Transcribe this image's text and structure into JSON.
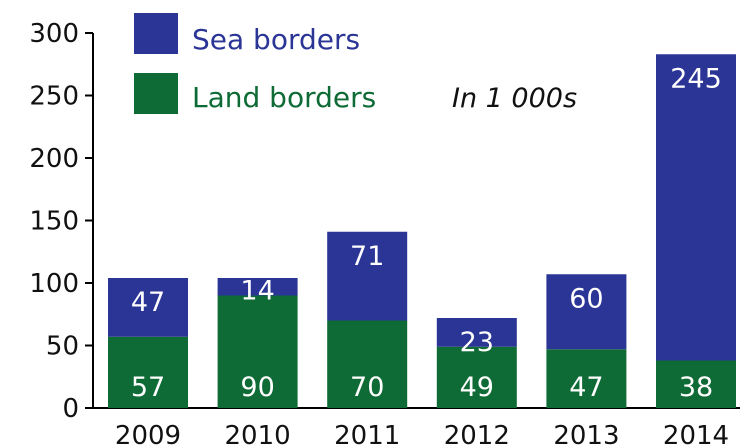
{
  "chart_data": {
    "type": "bar",
    "stacked": true,
    "categories": [
      "2009",
      "2010",
      "2011",
      "2012",
      "2013",
      "2014"
    ],
    "series": [
      {
        "name": "Land borders",
        "values": [
          57,
          90,
          70,
          49,
          47,
          38
        ],
        "color": "#0f6b35"
      },
      {
        "name": "Sea borders",
        "values": [
          47,
          14,
          71,
          23,
          60,
          245
        ],
        "color": "#2a3596"
      }
    ],
    "yticks": [
      "0",
      "50",
      "100",
      "150",
      "200",
      "250",
      "300"
    ],
    "ylim": [
      0,
      300
    ],
    "unit_note": "In 1 000s",
    "legend_placement": "top-left",
    "grid": false
  }
}
